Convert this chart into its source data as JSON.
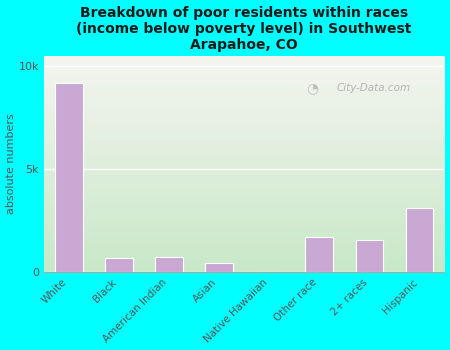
{
  "title": "Breakdown of poor residents within races\n(income below poverty level) in Southwest\nArapahoe, CO",
  "categories": [
    "White",
    "Black",
    "American Indian",
    "Asian",
    "Native Hawaiian",
    "Other race",
    "2+ races",
    "Hispanic"
  ],
  "values": [
    9200,
    700,
    750,
    450,
    0,
    1700,
    1550,
    3100
  ],
  "bar_color": "#c9a8d4",
  "ylabel": "absolute numbers",
  "bg_color": "#00ffff",
  "plot_bg_topleft": "#e8f5e0",
  "plot_bg_topright": "#f5f5f0",
  "plot_bg_bottom": "#c8e8c8",
  "ylim": [
    0,
    10500
  ],
  "yticks": [
    0,
    5000,
    10000
  ],
  "ytick_labels": [
    "0",
    "5k",
    "10k"
  ],
  "watermark": "City-Data.com",
  "title_fontsize": 10,
  "ylabel_fontsize": 8,
  "tick_fontsize": 7.5,
  "label_color": "#555555"
}
